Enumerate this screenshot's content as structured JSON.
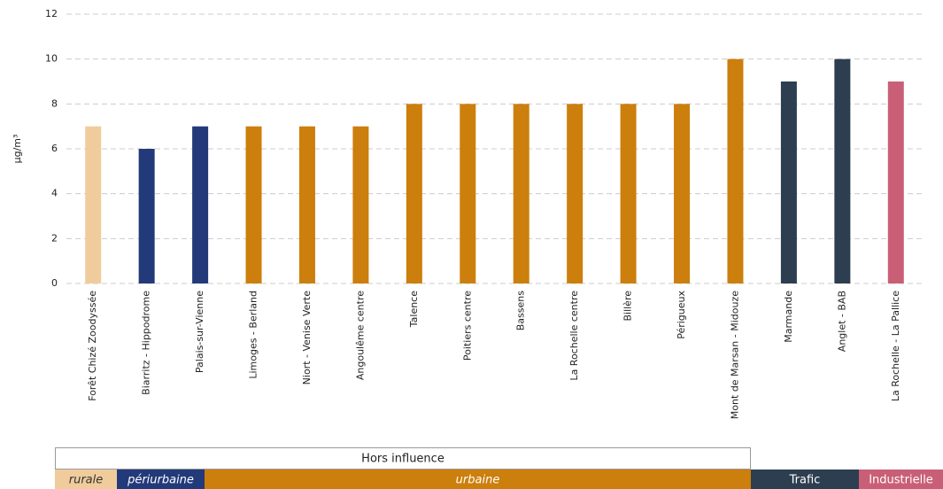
{
  "chart_data": {
    "type": "bar",
    "y_label": "µg/m³",
    "categories": [
      "Forêt Chizé Zoodyssée",
      "Biarritz - Hippodrome",
      "Palais-sur-Vienne",
      "Limoges - Berland",
      "Niort - Venise Verte",
      "Angoulême centre",
      "Talence",
      "Poitiers centre",
      "Bassens",
      "La Rochelle centre",
      "Billère",
      "Périgueux",
      "Mont de Marsan - Midouze",
      "Marmande",
      "Anglet - BAB",
      "La Rochelle - La Pallice"
    ],
    "values": [
      7,
      6,
      7,
      7,
      7,
      7,
      8,
      8,
      8,
      8,
      8,
      8,
      10,
      9,
      10,
      9
    ],
    "colors": [
      "#f0cc9c",
      "#233a7a",
      "#233a7a",
      "#cc7f0c",
      "#cc7f0c",
      "#cc7f0c",
      "#cc7f0c",
      "#cc7f0c",
      "#cc7f0c",
      "#cc7f0c",
      "#cc7f0c",
      "#cc7f0c",
      "#cc7f0c",
      "#2d3e50",
      "#2d3e50",
      "#c95f77"
    ],
    "ylim": [
      0,
      12
    ],
    "yticks": [
      0,
      2,
      4,
      6,
      8,
      10,
      12
    ],
    "grid": true,
    "group_header": "Hors influence",
    "groups": [
      {
        "label": "rurale",
        "color": "#f0cc9c"
      },
      {
        "label": "périurbaine",
        "color": "#233a7a"
      },
      {
        "label": "urbaine",
        "color": "#cc7f0c"
      },
      {
        "label": "Trafic",
        "color": "#2d3e50"
      },
      {
        "label": "Industrielle",
        "color": "#c95f77"
      }
    ]
  }
}
